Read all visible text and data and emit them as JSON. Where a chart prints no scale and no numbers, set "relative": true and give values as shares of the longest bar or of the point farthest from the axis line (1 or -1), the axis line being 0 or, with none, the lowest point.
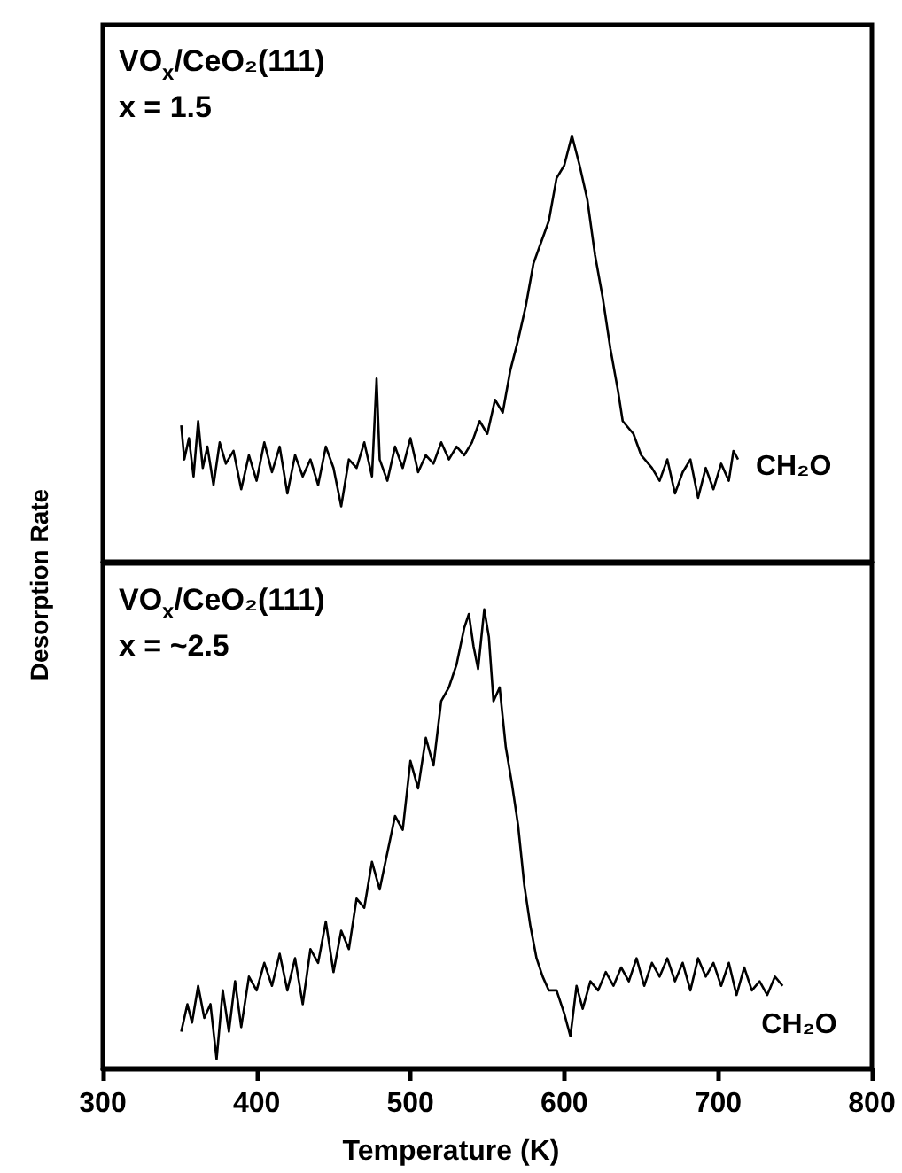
{
  "chart_data": [
    {
      "type": "line",
      "relative": true,
      "ylabel": "Desorption Rate",
      "xlim": [
        300,
        800
      ],
      "tick_labels": false,
      "annotations": [
        "VO$_{x}$/CeO₂(111)",
        "x = 1.5"
      ],
      "marker": "none",
      "x": [
        351,
        353,
        356,
        359,
        362,
        365,
        368,
        372,
        376,
        380,
        385,
        390,
        395,
        400,
        405,
        410,
        415,
        420,
        425,
        430,
        435,
        440,
        445,
        450,
        455,
        460,
        465,
        470,
        475,
        478,
        480,
        485,
        490,
        495,
        500,
        505,
        510,
        515,
        520,
        525,
        530,
        535,
        540,
        545,
        550,
        555,
        560,
        565,
        570,
        575,
        580,
        585,
        590,
        595,
        600,
        605,
        610,
        615,
        620,
        625,
        630,
        635,
        638,
        645,
        650,
        657,
        662,
        667,
        672,
        677,
        682,
        687,
        692,
        697,
        702,
        707,
        710,
        713
      ],
      "series": [
        {
          "name": "CH₂O",
          "color": "#000000",
          "values": [
            0.32,
            0.24,
            0.29,
            0.2,
            0.33,
            0.22,
            0.27,
            0.18,
            0.28,
            0.23,
            0.26,
            0.17,
            0.25,
            0.19,
            0.28,
            0.21,
            0.27,
            0.16,
            0.25,
            0.2,
            0.24,
            0.18,
            0.27,
            0.22,
            0.13,
            0.24,
            0.22,
            0.28,
            0.2,
            0.43,
            0.24,
            0.19,
            0.27,
            0.22,
            0.29,
            0.21,
            0.25,
            0.23,
            0.28,
            0.24,
            0.27,
            0.25,
            0.28,
            0.33,
            0.3,
            0.38,
            0.35,
            0.45,
            0.52,
            0.6,
            0.7,
            0.75,
            0.8,
            0.9,
            0.93,
            1.0,
            0.93,
            0.85,
            0.72,
            0.62,
            0.5,
            0.4,
            0.33,
            0.3,
            0.25,
            0.22,
            0.19,
            0.24,
            0.16,
            0.21,
            0.24,
            0.15,
            0.22,
            0.17,
            0.23,
            0.19,
            0.26,
            0.24
          ]
        }
      ]
    },
    {
      "type": "line",
      "relative": true,
      "xlabel": "Temperature (K)",
      "xlim": [
        300,
        800
      ],
      "xticks": [
        300,
        400,
        500,
        600,
        700,
        800
      ],
      "tick_labels": "x",
      "annotations": [
        "VO$_{x}$/CeO₂(111)",
        "x = ~2.5"
      ],
      "marker": "none",
      "x": [
        351,
        355,
        358,
        362,
        366,
        370,
        374,
        378,
        382,
        386,
        390,
        395,
        400,
        405,
        410,
        415,
        420,
        425,
        430,
        435,
        440,
        445,
        450,
        455,
        460,
        465,
        470,
        475,
        480,
        485,
        490,
        495,
        500,
        505,
        510,
        515,
        520,
        525,
        530,
        535,
        538,
        541,
        544,
        548,
        551,
        554,
        558,
        562,
        566,
        570,
        574,
        578,
        582,
        586,
        590,
        595,
        600,
        604,
        608,
        612,
        617,
        622,
        627,
        632,
        637,
        642,
        647,
        652,
        657,
        662,
        667,
        672,
        677,
        682,
        687,
        692,
        697,
        702,
        707,
        712,
        717,
        722,
        727,
        732,
        737,
        742
      ],
      "series": [
        {
          "name": "CH₂O",
          "color": "#000000",
          "values": [
            0.08,
            0.14,
            0.1,
            0.18,
            0.11,
            0.14,
            0.02,
            0.17,
            0.08,
            0.19,
            0.09,
            0.2,
            0.17,
            0.23,
            0.18,
            0.25,
            0.17,
            0.24,
            0.14,
            0.26,
            0.23,
            0.32,
            0.21,
            0.3,
            0.26,
            0.37,
            0.35,
            0.45,
            0.39,
            0.47,
            0.55,
            0.52,
            0.67,
            0.61,
            0.72,
            0.66,
            0.8,
            0.83,
            0.88,
            0.96,
            0.99,
            0.92,
            0.87,
            1.0,
            0.94,
            0.8,
            0.83,
            0.7,
            0.62,
            0.53,
            0.4,
            0.31,
            0.24,
            0.2,
            0.17,
            0.17,
            0.12,
            0.07,
            0.18,
            0.13,
            0.19,
            0.17,
            0.21,
            0.18,
            0.22,
            0.19,
            0.24,
            0.18,
            0.23,
            0.2,
            0.24,
            0.19,
            0.23,
            0.17,
            0.24,
            0.2,
            0.23,
            0.18,
            0.23,
            0.16,
            0.22,
            0.17,
            0.19,
            0.16,
            0.2,
            0.18
          ]
        }
      ]
    }
  ]
}
